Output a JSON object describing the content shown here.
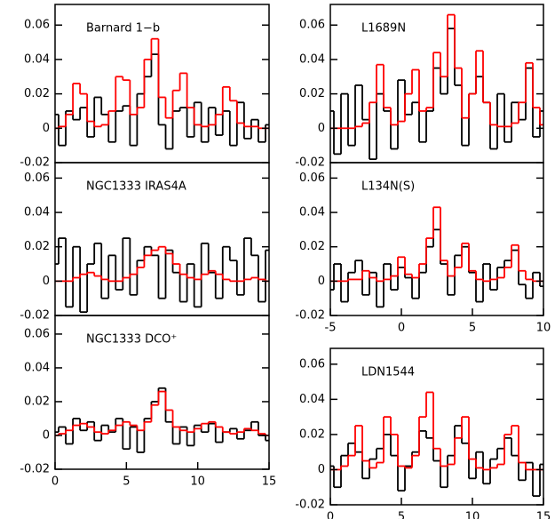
{
  "chart_data": [
    {
      "type": "line",
      "drawstyle": "steps",
      "title": "Barnard 1−b",
      "x": [
        0,
        0.5,
        1,
        1.5,
        2,
        2.5,
        3,
        3.5,
        4,
        4.5,
        5,
        5.5,
        6,
        6.5,
        7,
        7.5,
        8,
        8.5,
        9,
        9.5,
        10,
        10.5,
        11,
        11.5,
        12,
        12.5,
        13,
        13.5,
        14,
        14.5,
        15
      ],
      "xlim": [
        0,
        15
      ],
      "ylim": [
        -0.02,
        0.072
      ],
      "yticks": [
        -0.02,
        0,
        0.02,
        0.04,
        0.06
      ],
      "series": [
        {
          "color": "#000000",
          "values": [
            0.008,
            -0.01,
            0.01,
            0.005,
            0.012,
            -0.005,
            0.018,
            0.008,
            -0.008,
            0.01,
            0.013,
            -0.01,
            0.02,
            0.03,
            0.043,
            0.002,
            -0.012,
            0.01,
            0.012,
            -0.005,
            0.015,
            -0.008,
            0.012,
            -0.004,
            0.01,
            -0.01,
            0.015,
            -0.006,
            0.005,
            -0.008,
            0.002
          ]
        },
        {
          "color": "#ff0000",
          "values": [
            0,
            0.001,
            0.008,
            0.026,
            0.02,
            0.004,
            0.001,
            0.002,
            0.01,
            0.03,
            0.028,
            0.008,
            0.012,
            0.04,
            0.052,
            0.018,
            0.006,
            0.022,
            0.032,
            0.012,
            0.002,
            0.001,
            0.002,
            0.008,
            0.024,
            0.016,
            0.003,
            0.001,
            0.001,
            0,
            0
          ]
        }
      ]
    },
    {
      "type": "line",
      "drawstyle": "steps",
      "title": "NGC1333 IRAS4A",
      "x": [
        0,
        0.5,
        1,
        1.5,
        2,
        2.5,
        3,
        3.5,
        4,
        4.5,
        5,
        5.5,
        6,
        6.5,
        7,
        7.5,
        8,
        8.5,
        9,
        9.5,
        10,
        10.5,
        11,
        11.5,
        12,
        12.5,
        13,
        13.5,
        14,
        14.5,
        15
      ],
      "xlim": [
        0,
        15
      ],
      "ylim": [
        -0.02,
        0.069
      ],
      "yticks": [
        -0.02,
        0,
        0.02,
        0.04,
        0.06
      ],
      "series": [
        {
          "color": "#000000",
          "values": [
            0.01,
            0.025,
            -0.015,
            0.02,
            -0.018,
            0.01,
            0.022,
            -0.01,
            0.015,
            -0.005,
            0.025,
            -0.008,
            0.012,
            0.02,
            0.015,
            -0.01,
            0.018,
            0.005,
            -0.012,
            0.01,
            -0.015,
            0.022,
            0.005,
            -0.01,
            0.02,
            0.012,
            -0.008,
            0.025,
            0.015,
            -0.012,
            0.018
          ]
        },
        {
          "color": "#ff0000",
          "values": [
            0,
            0,
            0,
            0.002,
            0.004,
            0.005,
            0.003,
            0.001,
            0,
            0,
            0.002,
            0.004,
            0.008,
            0.015,
            0.018,
            0.02,
            0.016,
            0.01,
            0.004,
            0.002,
            0.001,
            0.004,
            0.006,
            0.004,
            0.001,
            0,
            0,
            0.001,
            0.002,
            0.001,
            0
          ]
        }
      ]
    },
    {
      "type": "line",
      "drawstyle": "steps",
      "title": "NGC1333 DCO⁺",
      "x": [
        0,
        0.5,
        1,
        1.5,
        2,
        2.5,
        3,
        3.5,
        4,
        4.5,
        5,
        5.5,
        6,
        6.5,
        7,
        7.5,
        8,
        8.5,
        9,
        9.5,
        10,
        10.5,
        11,
        11.5,
        12,
        12.5,
        13,
        13.5,
        14,
        14.5,
        15
      ],
      "xlim": [
        0,
        15
      ],
      "xticks": [
        0,
        5,
        10,
        15
      ],
      "ylim": [
        -0.02,
        0.071
      ],
      "yticks": [
        -0.02,
        0,
        0.02,
        0.04,
        0.06
      ],
      "series": [
        {
          "color": "#000000",
          "values": [
            0.002,
            0.005,
            -0.005,
            0.01,
            0.003,
            0.008,
            -0.003,
            0.006,
            0.002,
            0.01,
            -0.008,
            0.005,
            -0.01,
            0.01,
            0.02,
            0.028,
            0.008,
            -0.005,
            0.005,
            -0.006,
            0.006,
            0.002,
            0.007,
            -0.004,
            0.002,
            0.004,
            -0.002,
            0.003,
            0.008,
            0,
            -0.003
          ]
        },
        {
          "color": "#ff0000",
          "values": [
            0,
            0.001,
            0.003,
            0.006,
            0.007,
            0.005,
            0.002,
            0.001,
            0.003,
            0.006,
            0.008,
            0.006,
            0.003,
            0.008,
            0.018,
            0.026,
            0.015,
            0.005,
            0.003,
            0.002,
            0.004,
            0.007,
            0.008,
            0.005,
            0.002,
            0.001,
            0.002,
            0.004,
            0.003,
            0.001,
            0
          ]
        }
      ]
    },
    {
      "type": "line",
      "drawstyle": "steps",
      "title": "L1689N",
      "x": [
        -5,
        -4.5,
        -4,
        -3.5,
        -3,
        -2.5,
        -2,
        -1.5,
        -1,
        -0.5,
        0,
        0.5,
        1,
        1.5,
        2,
        2.5,
        3,
        3.5,
        4,
        4.5,
        5,
        5.5,
        6,
        6.5,
        7,
        7.5,
        8,
        8.5,
        9,
        9.5,
        10
      ],
      "xlim": [
        -5,
        10
      ],
      "ylim": [
        -0.02,
        0.072
      ],
      "yticks": [
        -0.02,
        0,
        0.02,
        0.04,
        0.06
      ],
      "series": [
        {
          "color": "#000000",
          "values": [
            0.01,
            -0.015,
            0.02,
            -0.01,
            0.025,
            0.005,
            -0.018,
            0.02,
            0.01,
            -0.012,
            0.028,
            0.008,
            0.015,
            -0.008,
            0.01,
            0.035,
            0.02,
            0.058,
            0.025,
            -0.01,
            0.02,
            0.03,
            0.015,
            -0.012,
            0.02,
            -0.008,
            0.015,
            0.005,
            0.035,
            -0.005,
            0.01
          ]
        },
        {
          "color": "#ff0000",
          "values": [
            0,
            0,
            0,
            0,
            0.001,
            0.003,
            0.015,
            0.037,
            0.012,
            0.002,
            0.004,
            0.02,
            0.034,
            0.01,
            0.012,
            0.044,
            0.03,
            0.066,
            0.035,
            0.006,
            0.02,
            0.045,
            0.015,
            0.002,
            0.001,
            0.001,
            0.003,
            0.015,
            0.038,
            0.012,
            0.002
          ]
        }
      ]
    },
    {
      "type": "line",
      "drawstyle": "steps",
      "title": "L134N(S)",
      "x": [
        -5,
        -4.5,
        -4,
        -3.5,
        -3,
        -2.5,
        -2,
        -1.5,
        -1,
        -0.5,
        0,
        0.5,
        1,
        1.5,
        2,
        2.5,
        3,
        3.5,
        4,
        4.5,
        5,
        5.5,
        6,
        6.5,
        7,
        7.5,
        8,
        8.5,
        9,
        9.5,
        10
      ],
      "xlim": [
        -5,
        10
      ],
      "xticks": [
        -5,
        0,
        5,
        10
      ],
      "ylim": [
        -0.02,
        0.069
      ],
      "yticks": [
        -0.02,
        0,
        0.02,
        0.04,
        0.06
      ],
      "series": [
        {
          "color": "#000000",
          "values": [
            -0.005,
            0.01,
            -0.012,
            0.005,
            0.012,
            -0.008,
            0.005,
            -0.015,
            0.01,
            -0.005,
            0.008,
            0.002,
            -0.01,
            0.005,
            0.02,
            0.03,
            0.01,
            -0.008,
            0.015,
            0.02,
            0.005,
            -0.012,
            0.01,
            -0.005,
            0.008,
            0.012,
            0.018,
            -0.002,
            -0.01,
            0.005,
            -0.003
          ]
        },
        {
          "color": "#ff0000",
          "values": [
            0,
            0,
            0,
            0.001,
            0.001,
            0.006,
            0.002,
            0,
            0.001,
            0.003,
            0.014,
            0.004,
            0.002,
            0.01,
            0.025,
            0.043,
            0.012,
            0.003,
            0.008,
            0.022,
            0.006,
            0.001,
            0,
            0.001,
            0.002,
            0.008,
            0.021,
            0.006,
            0.001,
            0,
            0
          ]
        }
      ]
    },
    {
      "type": "line",
      "drawstyle": "steps",
      "title": "LDN1544",
      "x": [
        0,
        0.5,
        1,
        1.5,
        2,
        2.5,
        3,
        3.5,
        4,
        4.5,
        5,
        5.5,
        6,
        6.5,
        7,
        7.5,
        8,
        8.5,
        9,
        9.5,
        10,
        10.5,
        11,
        11.5,
        12,
        12.5,
        13,
        13.5,
        14,
        14.5,
        15
      ],
      "xlim": [
        0,
        15
      ],
      "xticks": [
        0,
        5,
        10,
        15
      ],
      "ylim": [
        -0.02,
        0.069
      ],
      "yticks": [
        -0.02,
        0,
        0.02,
        0.04,
        0.06
      ],
      "series": [
        {
          "color": "#000000",
          "values": [
            0.002,
            -0.01,
            0.008,
            0.015,
            0.01,
            -0.005,
            0.006,
            0.012,
            0.02,
            0.008,
            -0.012,
            0.002,
            0.01,
            0.022,
            0.018,
            0.005,
            -0.01,
            0.008,
            0.025,
            0.015,
            -0.005,
            0.01,
            -0.008,
            0.006,
            0.012,
            0.018,
            0.008,
            -0.006,
            0.004,
            -0.015,
            0.003
          ]
        },
        {
          "color": "#ff0000",
          "values": [
            0,
            0,
            0.002,
            0.008,
            0.025,
            0.005,
            0.001,
            0.004,
            0.03,
            0.02,
            0.002,
            0.001,
            0.008,
            0.03,
            0.044,
            0.012,
            0.002,
            0.003,
            0.018,
            0.03,
            0.006,
            0.001,
            0,
            0.001,
            0.003,
            0.02,
            0.025,
            0.004,
            0,
            0,
            0
          ]
        }
      ]
    }
  ]
}
